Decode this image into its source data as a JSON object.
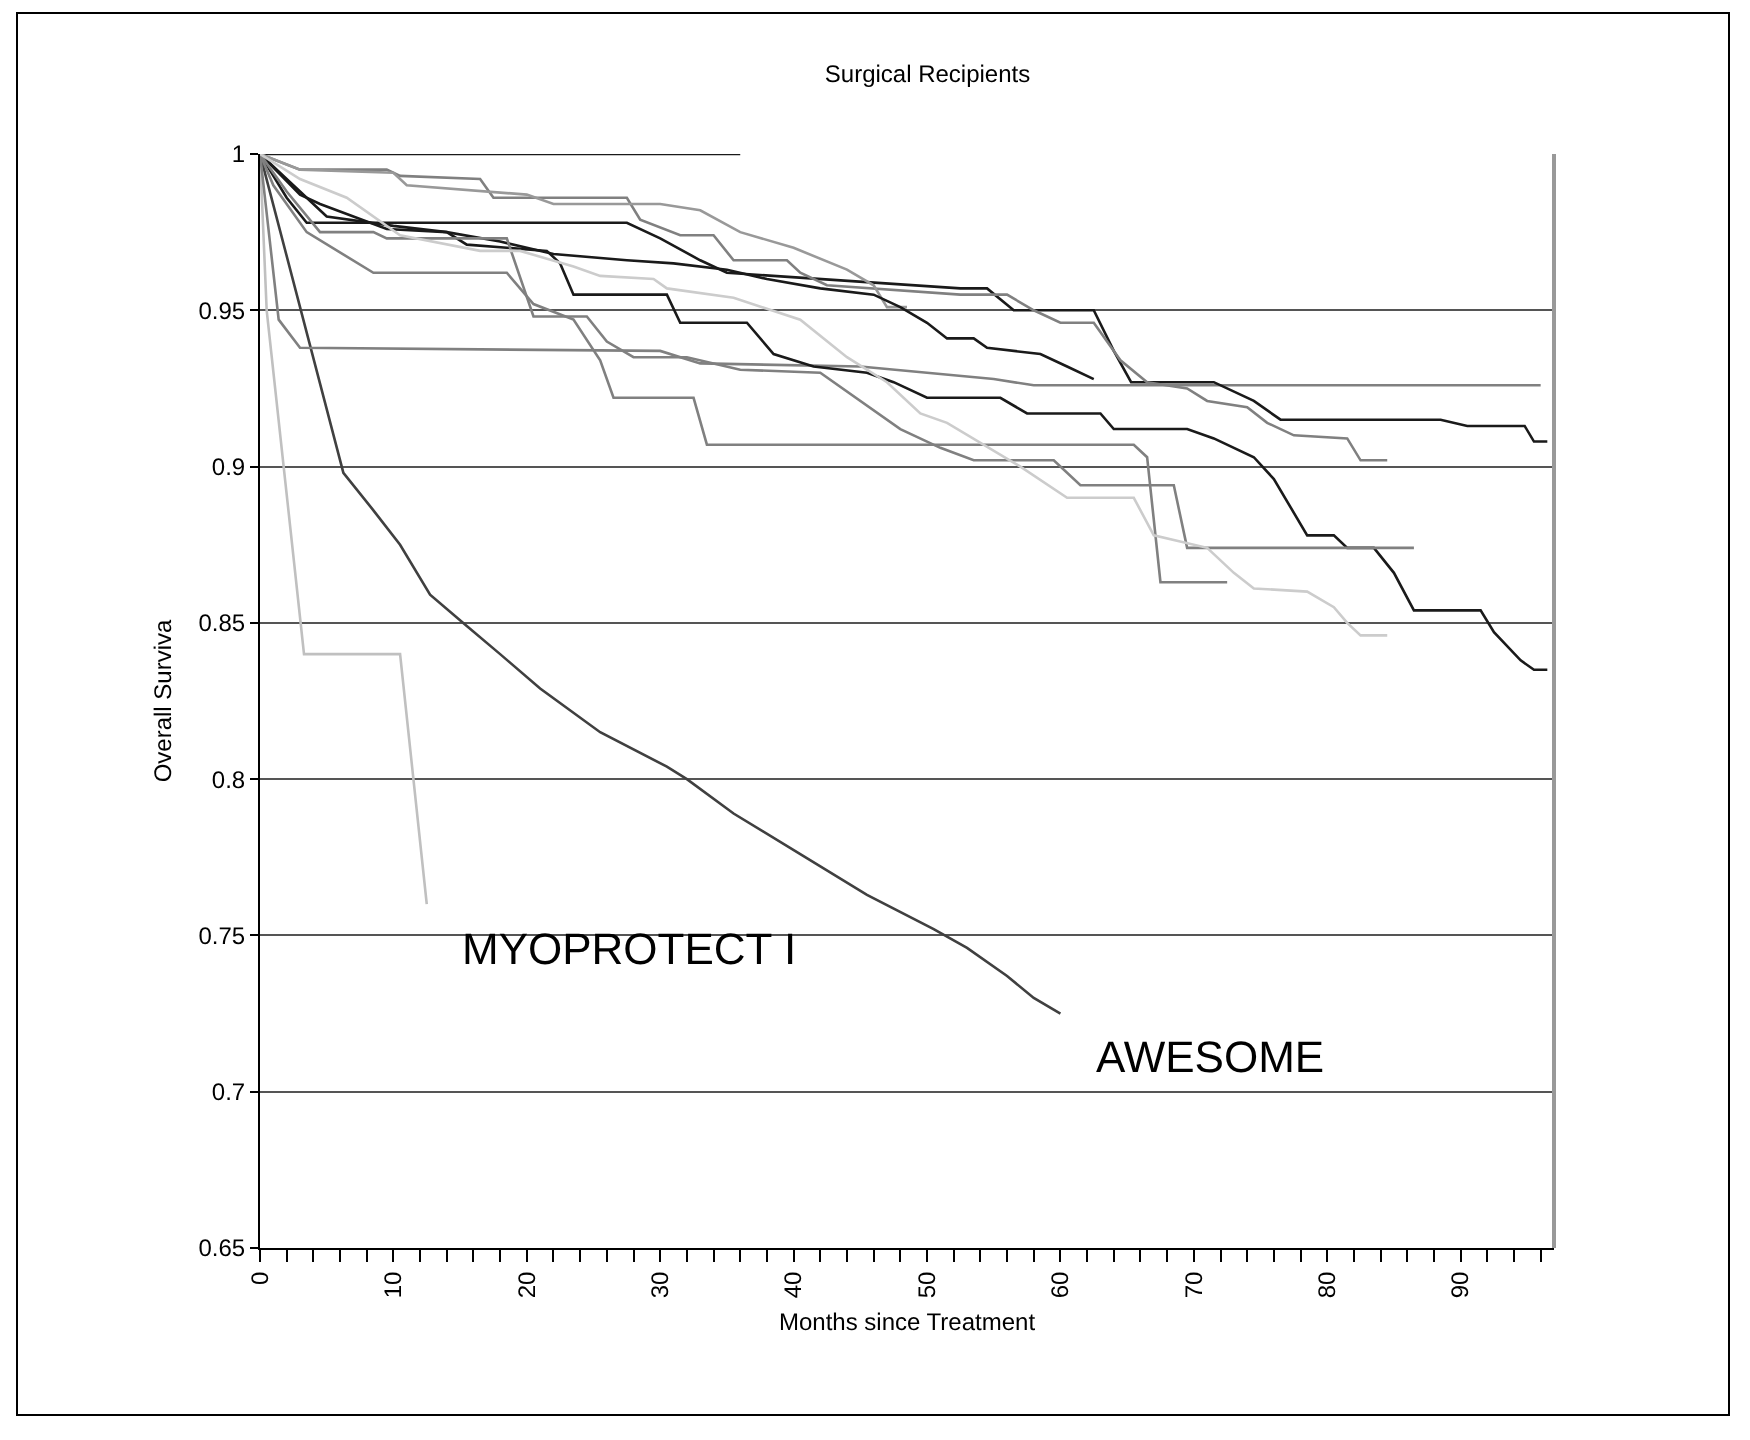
{
  "chart_data": {
    "type": "line",
    "title": "Surgical Recipients",
    "xlabel": "Months since Treatment",
    "ylabel": "Overall Surviva",
    "xlim": [
      0,
      97
    ],
    "ylim": [
      0.65,
      1
    ],
    "xticks": [
      0,
      {
        "value": 2,
        "label": null
      },
      {
        "value": 4,
        "label": null
      },
      {
        "value": 6,
        "label": null
      },
      {
        "value": 8,
        "label": null
      },
      10,
      {
        "value": 12,
        "label": null
      },
      {
        "value": 14,
        "label": null
      },
      {
        "value": 16,
        "label": null
      },
      {
        "value": 18,
        "label": null
      },
      20,
      {
        "value": 22,
        "label": null
      },
      {
        "value": 24,
        "label": null
      },
      {
        "value": 26,
        "label": null
      },
      {
        "value": 28,
        "label": null
      },
      30,
      {
        "value": 32,
        "label": null
      },
      {
        "value": 34,
        "label": null
      },
      {
        "value": 36,
        "label": null
      },
      {
        "value": 38,
        "label": null
      },
      40,
      {
        "value": 42,
        "label": null
      },
      {
        "value": 44,
        "label": null
      },
      {
        "value": 46,
        "label": null
      },
      {
        "value": 48,
        "label": null
      },
      50,
      {
        "value": 52,
        "label": null
      },
      {
        "value": 54,
        "label": null
      },
      {
        "value": 56,
        "label": null
      },
      {
        "value": 58,
        "label": null
      },
      60,
      {
        "value": 62,
        "label": null
      },
      {
        "value": 64,
        "label": null
      },
      {
        "value": 66,
        "label": null
      },
      {
        "value": 68,
        "label": null
      },
      70,
      {
        "value": 72,
        "label": null
      },
      {
        "value": 74,
        "label": null
      },
      {
        "value": 76,
        "label": null
      },
      {
        "value": 78,
        "label": null
      },
      80,
      {
        "value": 82,
        "label": null
      },
      {
        "value": 84,
        "label": null
      },
      {
        "value": 86,
        "label": null
      },
      {
        "value": 88,
        "label": null
      },
      90,
      {
        "value": 92,
        "label": null
      },
      {
        "value": 94,
        "label": null
      },
      {
        "value": 96,
        "label": null
      }
    ],
    "yticks": [
      0.65,
      0.7,
      0.75,
      0.8,
      0.85,
      0.9,
      0.95,
      1
    ],
    "grid": "y",
    "legend": false,
    "marker": "none",
    "line_style": "solid",
    "series": [
      {
        "color": "#1a1a1a",
        "x": [
          0,
          36
        ],
        "values": [
          1,
          1
        ]
      },
      {
        "name": "MYOPROTECT I",
        "color": "#c0c0c0",
        "x": [
          0,
          0.5,
          3.3,
          10.5,
          12.5
        ],
        "values": [
          1,
          0.95,
          0.84,
          0.84,
          0.76
        ]
      },
      {
        "name": "AWESOME",
        "color": "#404040",
        "x": [
          0,
          6.25,
          8.5,
          10.5,
          12.75,
          15.5,
          18,
          21,
          25.5,
          30.5,
          32,
          35.5,
          40.5,
          45.5,
          50.5,
          53,
          56,
          58,
          60
        ],
        "values": [
          1,
          0.898,
          0.886,
          0.875,
          0.859,
          0.849,
          0.84,
          0.829,
          0.815,
          0.804,
          0.8,
          0.789,
          0.776,
          0.763,
          0.752,
          0.746,
          0.737,
          0.73,
          0.725
        ]
      },
      {
        "color": "#808080",
        "x": [
          0,
          1.4,
          3,
          30,
          33,
          45,
          55,
          58,
          96
        ],
        "values": [
          1,
          0.947,
          0.938,
          0.937,
          0.933,
          0.932,
          0.928,
          0.926,
          0.926
        ]
      },
      {
        "color": "#1a1a1a",
        "x": [
          0,
          2,
          3.5,
          27.5,
          30,
          33,
          35,
          52.5,
          54.5,
          56.5,
          62.5,
          64,
          65.3,
          71.5,
          74.5,
          76.5,
          88.5,
          90.5,
          94.8,
          95.5,
          96.5
        ],
        "values": [
          1,
          0.986,
          0.978,
          0.978,
          0.973,
          0.966,
          0.962,
          0.957,
          0.957,
          0.95,
          0.95,
          0.937,
          0.927,
          0.927,
          0.921,
          0.915,
          0.915,
          0.913,
          0.913,
          0.908,
          0.908
        ]
      },
      {
        "color": "#808080",
        "x": [
          0,
          3,
          9.5,
          10.5,
          16.5,
          17.5,
          27.5,
          28.5,
          31.5,
          34,
          35.5,
          39.5,
          40.5,
          42.5,
          52.5,
          56,
          58,
          60,
          62.5,
          64.5,
          66.5,
          69.5,
          71,
          74,
          75.5,
          77.5,
          81.5,
          82.5,
          84.5
        ],
        "values": [
          1,
          0.995,
          0.995,
          0.993,
          0.992,
          0.986,
          0.986,
          0.979,
          0.974,
          0.974,
          0.966,
          0.966,
          0.962,
          0.958,
          0.955,
          0.955,
          0.95,
          0.946,
          0.946,
          0.934,
          0.927,
          0.925,
          0.921,
          0.919,
          0.914,
          0.91,
          0.909,
          0.902,
          0.902
        ]
      },
      {
        "color": "#999999",
        "x": [
          0,
          3,
          10,
          11,
          20,
          22,
          30,
          33,
          36,
          40,
          44,
          46,
          47,
          48.5
        ],
        "values": [
          1,
          0.995,
          0.994,
          0.99,
          0.987,
          0.984,
          0.984,
          0.982,
          0.975,
          0.97,
          0.963,
          0.958,
          0.951,
          0.951
        ]
      },
      {
        "color": "#1a1a1a",
        "x": [
          0,
          3,
          5,
          10,
          14,
          18,
          22,
          27.5,
          31,
          35,
          38,
          42,
          46,
          48,
          50,
          51.5,
          53.5,
          54.5,
          58.5,
          60.5,
          62.5
        ],
        "values": [
          1,
          0.988,
          0.98,
          0.977,
          0.975,
          0.972,
          0.968,
          0.966,
          0.965,
          0.963,
          0.96,
          0.957,
          0.955,
          0.951,
          0.946,
          0.941,
          0.941,
          0.938,
          0.936,
          0.932,
          0.928
        ]
      },
      {
        "color": "#1a1a1a",
        "x": [
          0,
          3,
          4.5,
          9.5,
          14,
          15.5,
          21.5,
          22.5,
          23.5,
          30.5,
          31.5,
          36.5,
          38.5,
          41.5,
          45.5,
          47.5,
          50,
          55.5,
          57.5,
          63,
          64,
          69.5,
          71.5,
          74.5,
          76,
          78.5,
          80.5,
          81.5,
          83.5,
          85,
          86.5,
          91.5,
          92.5,
          94.5,
          95.5,
          96.5
        ],
        "values": [
          1,
          0.987,
          0.984,
          0.976,
          0.975,
          0.971,
          0.969,
          0.965,
          0.955,
          0.955,
          0.946,
          0.946,
          0.936,
          0.932,
          0.93,
          0.927,
          0.922,
          0.922,
          0.917,
          0.917,
          0.912,
          0.912,
          0.909,
          0.903,
          0.896,
          0.878,
          0.878,
          0.874,
          0.874,
          0.866,
          0.854,
          0.854,
          0.847,
          0.838,
          0.835,
          0.835
        ]
      },
      {
        "color": "#808080",
        "x": [
          0,
          2,
          4.5,
          8.5,
          9.5,
          18.5,
          20.5,
          24.5,
          26,
          28,
          32,
          36,
          42,
          48,
          51,
          53.5,
          59.5,
          61.5,
          68.5,
          69.5,
          86.5
        ],
        "values": [
          1,
          0.988,
          0.975,
          0.975,
          0.973,
          0.973,
          0.948,
          0.948,
          0.94,
          0.935,
          0.935,
          0.931,
          0.93,
          0.912,
          0.906,
          0.902,
          0.902,
          0.894,
          0.894,
          0.874,
          0.874
        ]
      },
      {
        "color": "#808080",
        "x": [
          0,
          1,
          3.5,
          8.5,
          18.5,
          20.5,
          23.5,
          25.5,
          26.5,
          32.5,
          33.5,
          65.5,
          66.5,
          67.5,
          72.5
        ],
        "values": [
          1,
          0.99,
          0.975,
          0.962,
          0.962,
          0.952,
          0.947,
          0.934,
          0.922,
          0.922,
          0.907,
          0.907,
          0.903,
          0.863,
          0.863
        ]
      },
      {
        "color": "#cccccc",
        "x": [
          0,
          3,
          6.5,
          10.5,
          16.5,
          19.5,
          23.5,
          25.5,
          29.5,
          30.5,
          35.5,
          40.5,
          44,
          47,
          49.5,
          51.5,
          57,
          60.5,
          65.5,
          67,
          71,
          73,
          74.5,
          78.5,
          80.5,
          81.5,
          82.5,
          84.5
        ],
        "values": [
          1,
          0.992,
          0.986,
          0.974,
          0.969,
          0.969,
          0.964,
          0.961,
          0.96,
          0.957,
          0.954,
          0.947,
          0.935,
          0.927,
          0.917,
          0.914,
          0.9,
          0.89,
          0.89,
          0.878,
          0.874,
          0.866,
          0.861,
          0.86,
          0.855,
          0.85,
          0.846,
          0.846
        ]
      }
    ]
  }
}
